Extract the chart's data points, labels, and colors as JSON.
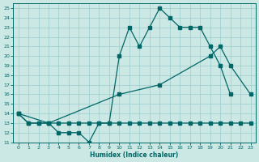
{
  "xlabel": "Humidex (Indice chaleur)",
  "bg_color": "#cce8e4",
  "line_color": "#006666",
  "grid_color": "#99cccc",
  "xlim": [
    -0.5,
    23.5
  ],
  "ylim": [
    11,
    25.5
  ],
  "xticks": [
    0,
    1,
    2,
    3,
    4,
    5,
    6,
    7,
    8,
    9,
    10,
    11,
    12,
    13,
    14,
    15,
    16,
    17,
    18,
    19,
    20,
    21,
    22,
    23
  ],
  "yticks": [
    11,
    12,
    13,
    14,
    15,
    16,
    17,
    18,
    19,
    20,
    21,
    22,
    23,
    24,
    25
  ],
  "line1_x": [
    0,
    1,
    2,
    3,
    4,
    5,
    6,
    7,
    8,
    9,
    10,
    11,
    12,
    13,
    14,
    15,
    16,
    17,
    18,
    19,
    20,
    21
  ],
  "line1_y": [
    14,
    13,
    13,
    13,
    12,
    12,
    12,
    11,
    13,
    13,
    20,
    23,
    21,
    23,
    25,
    24,
    23,
    23,
    23,
    21,
    19,
    16
  ],
  "line2_x": [
    0,
    1,
    2,
    3,
    4,
    5,
    6,
    7,
    8,
    9,
    10,
    11,
    12,
    13,
    14,
    15,
    16,
    17,
    18,
    19,
    20,
    21,
    22,
    23
  ],
  "line2_y": [
    14,
    13,
    13,
    13,
    13,
    13,
    13,
    13,
    13,
    13,
    13,
    13,
    13,
    13,
    13,
    13,
    13,
    13,
    13,
    13,
    13,
    13,
    13,
    13
  ],
  "line3_x": [
    0,
    3,
    10,
    14,
    19,
    20,
    21,
    23
  ],
  "line3_y": [
    14,
    13,
    16,
    17,
    20,
    21,
    19,
    16
  ]
}
